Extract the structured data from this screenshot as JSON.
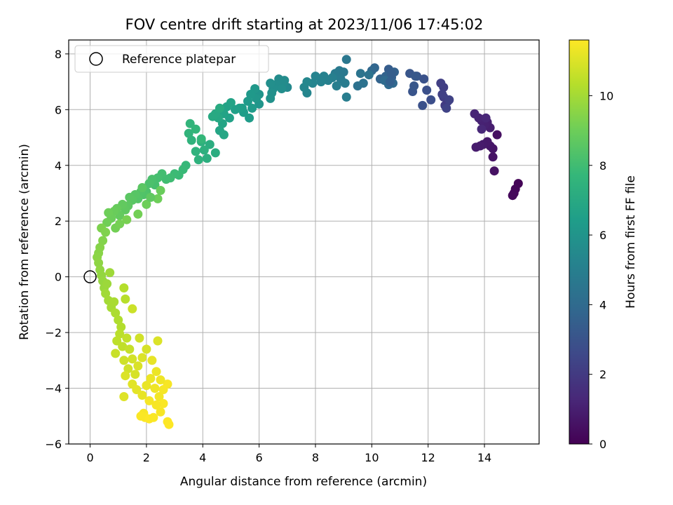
{
  "chart_data": {
    "type": "scatter",
    "title": "FOV centre drift starting at 2023/11/06 17:45:02",
    "xlabel": "Angular distance from reference (arcmin)",
    "ylabel": "Rotation from reference (arcmin)",
    "xlim": [
      -0.76,
      15.94
    ],
    "ylim": [
      -6,
      8.5
    ],
    "xticks": [
      0,
      2,
      4,
      6,
      8,
      10,
      12,
      14
    ],
    "yticks": [
      -6,
      -4,
      -2,
      0,
      2,
      4,
      6,
      8
    ],
    "grid": true,
    "legend": {
      "placement": "top-left",
      "entries": [
        "Reference platepar"
      ]
    },
    "reference_point": {
      "x": 0,
      "y": 0
    },
    "colorbar": {
      "label": "Hours from first FF file",
      "colormap": "viridis",
      "range": [
        0,
        11.6
      ],
      "ticks": [
        0,
        2,
        4,
        6,
        8,
        10
      ]
    },
    "colormap_stops": [
      "#440154",
      "#482878",
      "#3e4989",
      "#31688e",
      "#26828e",
      "#1f9e89",
      "#35b779",
      "#6ece58",
      "#b5de2b",
      "#fde725"
    ],
    "series": [
      {
        "points": [
          [
            15.2,
            3.35,
            0.1
          ],
          [
            15.1,
            3.15,
            0.15
          ],
          [
            15.05,
            3.0,
            0.2
          ],
          [
            15.0,
            2.92,
            0.25
          ],
          [
            14.45,
            5.1,
            0.5
          ],
          [
            14.35,
            3.8,
            0.55
          ],
          [
            14.3,
            4.3,
            0.6
          ],
          [
            14.3,
            4.6,
            0.65
          ],
          [
            14.2,
            4.7,
            0.7
          ],
          [
            14.1,
            4.85,
            0.75
          ],
          [
            13.95,
            4.75,
            0.8
          ],
          [
            13.85,
            4.7,
            0.85
          ],
          [
            13.7,
            4.65,
            0.9
          ],
          [
            14.2,
            5.35,
            0.95
          ],
          [
            14.1,
            5.55,
            1.0
          ],
          [
            14.0,
            5.45,
            1.05
          ],
          [
            13.9,
            5.6,
            1.1
          ],
          [
            13.8,
            5.7,
            1.15
          ],
          [
            13.65,
            5.85,
            1.2
          ],
          [
            14.05,
            5.7,
            1.25
          ],
          [
            13.9,
            5.3,
            1.3
          ],
          [
            12.7,
            6.3,
            2.0
          ],
          [
            12.6,
            6.15,
            2.05
          ],
          [
            12.55,
            6.45,
            2.1
          ],
          [
            12.55,
            6.8,
            2.15
          ],
          [
            12.45,
            6.95,
            2.2
          ],
          [
            12.5,
            6.55,
            2.25
          ],
          [
            12.75,
            6.35,
            2.3
          ],
          [
            12.65,
            6.05,
            2.35
          ],
          [
            12.1,
            6.35,
            2.8
          ],
          [
            11.95,
            6.7,
            2.85
          ],
          [
            11.8,
            6.15,
            2.9
          ],
          [
            11.85,
            7.1,
            2.95
          ],
          [
            11.6,
            7.2,
            3.0
          ],
          [
            11.45,
            6.65,
            3.05
          ],
          [
            11.35,
            7.3,
            3.1
          ],
          [
            11.5,
            6.85,
            3.15
          ],
          [
            11.55,
            7.2,
            3.2
          ],
          [
            10.6,
            7.45,
            3.4
          ],
          [
            10.7,
            7.15,
            3.5
          ],
          [
            10.8,
            7.35,
            3.6
          ],
          [
            10.5,
            7.2,
            3.65
          ],
          [
            10.3,
            7.1,
            3.7
          ],
          [
            10.1,
            7.5,
            3.8
          ],
          [
            10.0,
            7.4,
            3.85
          ],
          [
            10.75,
            6.95,
            3.9
          ],
          [
            10.6,
            6.9,
            3.95
          ],
          [
            10.45,
            7.05,
            4.0
          ],
          [
            10.7,
            7.3,
            3.45
          ],
          [
            10.65,
            7.0,
            3.55
          ],
          [
            9.5,
            6.85,
            4.3
          ],
          [
            9.7,
            6.95,
            4.35
          ],
          [
            9.9,
            7.25,
            4.4
          ],
          [
            9.6,
            7.3,
            4.45
          ],
          [
            9.1,
            7.8,
            4.6
          ],
          [
            9.0,
            7.35,
            4.65
          ],
          [
            8.85,
            7.4,
            4.7
          ],
          [
            8.7,
            7.3,
            4.75
          ],
          [
            8.9,
            7.1,
            4.8
          ],
          [
            9.05,
            6.95,
            4.85
          ],
          [
            9.1,
            6.45,
            4.9
          ],
          [
            8.75,
            6.85,
            4.95
          ],
          [
            8.6,
            7.15,
            5.0
          ],
          [
            8.45,
            7.05,
            5.05
          ],
          [
            8.3,
            7.2,
            5.1
          ],
          [
            8.2,
            7.0,
            5.15
          ],
          [
            8.0,
            7.2,
            5.2
          ],
          [
            7.9,
            6.95,
            5.25
          ],
          [
            7.7,
            6.6,
            5.3
          ],
          [
            7.6,
            6.8,
            5.35
          ],
          [
            7.7,
            7.0,
            5.4
          ],
          [
            7.0,
            6.8,
            5.5
          ],
          [
            6.85,
            6.95,
            5.55
          ],
          [
            6.7,
            7.1,
            5.6
          ],
          [
            6.6,
            6.9,
            5.65
          ],
          [
            6.5,
            6.75,
            5.7
          ],
          [
            6.4,
            6.95,
            5.75
          ],
          [
            6.45,
            6.6,
            5.8
          ],
          [
            6.4,
            6.4,
            5.85
          ],
          [
            6.9,
            7.05,
            5.6
          ],
          [
            6.8,
            6.75,
            5.7
          ],
          [
            6.0,
            6.55,
            6.0
          ],
          [
            6.0,
            6.2,
            6.05
          ],
          [
            5.9,
            6.4,
            6.1
          ],
          [
            5.85,
            6.75,
            6.15
          ],
          [
            5.7,
            6.55,
            6.2
          ],
          [
            5.6,
            6.3,
            6.25
          ],
          [
            5.75,
            6.05,
            6.3
          ],
          [
            5.65,
            5.7,
            6.35
          ],
          [
            5.45,
            5.9,
            6.4
          ],
          [
            5.4,
            6.05,
            6.45
          ],
          [
            5.3,
            6.05,
            6.5
          ],
          [
            5.15,
            6.0,
            6.55
          ],
          [
            4.95,
            5.7,
            6.6
          ],
          [
            4.85,
            6.1,
            6.65
          ],
          [
            4.75,
            5.85,
            6.7
          ],
          [
            4.7,
            5.5,
            6.75
          ],
          [
            4.6,
            5.25,
            6.8
          ],
          [
            4.75,
            5.1,
            6.85
          ],
          [
            4.55,
            5.7,
            6.9
          ],
          [
            4.45,
            5.85,
            6.95
          ],
          [
            4.35,
            5.75,
            7.0
          ],
          [
            4.6,
            6.05,
            7.05
          ],
          [
            5.0,
            6.25,
            6.7
          ],
          [
            4.45,
            4.45,
            7.15
          ],
          [
            4.25,
            4.75,
            7.2
          ],
          [
            4.15,
            4.25,
            7.25
          ],
          [
            4.05,
            4.55,
            7.3
          ],
          [
            3.95,
            4.85,
            7.35
          ],
          [
            3.85,
            4.2,
            7.4
          ],
          [
            3.75,
            4.5,
            7.45
          ],
          [
            3.6,
            4.9,
            7.5
          ],
          [
            3.5,
            5.15,
            7.55
          ],
          [
            3.55,
            5.5,
            7.6
          ],
          [
            3.75,
            5.3,
            7.65
          ],
          [
            3.95,
            4.95,
            7.7
          ],
          [
            3.4,
            4.0,
            7.75
          ],
          [
            3.3,
            3.85,
            7.8
          ],
          [
            3.15,
            3.65,
            7.85
          ],
          [
            3.0,
            3.7,
            7.9
          ],
          [
            2.85,
            3.55,
            7.95
          ],
          [
            2.7,
            3.5,
            8.0
          ],
          [
            2.55,
            3.7,
            8.05
          ],
          [
            2.4,
            3.55,
            8.1
          ],
          [
            2.3,
            3.3,
            8.15
          ],
          [
            2.2,
            3.5,
            8.2
          ],
          [
            2.1,
            3.35,
            8.25
          ],
          [
            2.0,
            3.05,
            8.3
          ],
          [
            1.9,
            2.95,
            8.35
          ],
          [
            1.8,
            3.05,
            8.4
          ],
          [
            1.7,
            2.8,
            8.45
          ],
          [
            1.6,
            2.95,
            8.5
          ],
          [
            1.5,
            2.75,
            8.55
          ],
          [
            1.4,
            2.85,
            8.6
          ],
          [
            1.35,
            2.55,
            8.65
          ],
          [
            1.25,
            2.4,
            8.7
          ],
          [
            1.15,
            2.6,
            8.75
          ],
          [
            1.05,
            2.2,
            8.8
          ],
          [
            0.95,
            2.45,
            8.85
          ],
          [
            0.85,
            2.35,
            8.9
          ],
          [
            0.75,
            2.1,
            8.95
          ],
          [
            0.65,
            2.3,
            9.0
          ],
          [
            0.6,
            1.95,
            9.05
          ],
          [
            0.9,
            1.75,
            9.1
          ],
          [
            1.05,
            1.9,
            9.15
          ],
          [
            1.3,
            2.05,
            9.2
          ],
          [
            1.7,
            2.25,
            9.1
          ],
          [
            2.0,
            2.6,
            9.0
          ],
          [
            2.4,
            2.8,
            9.0
          ],
          [
            2.5,
            3.1,
            8.9
          ],
          [
            1.85,
            3.2,
            8.6
          ],
          [
            2.15,
            2.85,
            8.7
          ],
          [
            0.4,
            1.75,
            9.3
          ],
          [
            0.55,
            1.6,
            9.35
          ],
          [
            0.45,
            1.3,
            9.4
          ],
          [
            0.35,
            1.05,
            9.45
          ],
          [
            0.3,
            0.85,
            9.5
          ],
          [
            0.25,
            0.7,
            9.55
          ],
          [
            0.3,
            0.5,
            9.6
          ],
          [
            0.35,
            0.25,
            9.65
          ],
          [
            0.4,
            0.05,
            9.7
          ],
          [
            0.45,
            -0.15,
            9.75
          ],
          [
            0.5,
            -0.4,
            9.8
          ],
          [
            0.6,
            -0.25,
            9.85
          ],
          [
            0.7,
            0.15,
            9.9
          ],
          [
            0.55,
            -0.6,
            9.95
          ],
          [
            0.65,
            -0.85,
            10.0
          ],
          [
            0.75,
            -1.1,
            10.05
          ],
          [
            0.85,
            -0.9,
            10.1
          ],
          [
            0.9,
            -1.3,
            10.15
          ],
          [
            1.0,
            -1.55,
            10.2
          ],
          [
            1.1,
            -1.8,
            10.25
          ],
          [
            1.2,
            -0.4,
            10.3
          ],
          [
            1.25,
            -0.8,
            10.35
          ],
          [
            1.05,
            -2.05,
            10.4
          ],
          [
            0.95,
            -2.3,
            10.45
          ],
          [
            1.15,
            -2.5,
            10.5
          ],
          [
            1.3,
            -2.2,
            10.55
          ],
          [
            1.4,
            -2.6,
            10.6
          ],
          [
            0.9,
            -2.75,
            10.65
          ],
          [
            1.5,
            -1.15,
            10.7
          ],
          [
            1.2,
            -3.0,
            10.75
          ],
          [
            1.35,
            -3.3,
            10.8
          ],
          [
            1.5,
            -2.95,
            10.85
          ],
          [
            1.6,
            -3.5,
            10.9
          ],
          [
            1.7,
            -3.2,
            10.95
          ],
          [
            1.85,
            -2.9,
            11.0
          ],
          [
            1.75,
            -2.2,
            10.8
          ],
          [
            2.0,
            -2.6,
            10.9
          ],
          [
            2.4,
            -2.3,
            11.0
          ],
          [
            1.25,
            -3.55,
            11.0
          ],
          [
            1.2,
            -4.3,
            11.05
          ],
          [
            1.5,
            -3.85,
            11.1
          ],
          [
            1.65,
            -4.05,
            11.15
          ],
          [
            1.85,
            -4.25,
            11.2
          ],
          [
            2.0,
            -3.9,
            11.25
          ],
          [
            2.15,
            -3.65,
            11.3
          ],
          [
            2.3,
            -4.0,
            11.35
          ],
          [
            2.45,
            -4.3,
            11.4
          ],
          [
            2.6,
            -4.05,
            11.45
          ],
          [
            2.75,
            -3.85,
            11.5
          ],
          [
            2.6,
            -4.55,
            11.55
          ],
          [
            2.35,
            -4.6,
            11.5
          ],
          [
            2.1,
            -4.45,
            11.45
          ],
          [
            1.9,
            -4.9,
            11.5
          ],
          [
            1.95,
            -5.05,
            11.55
          ],
          [
            2.1,
            -5.1,
            11.6
          ],
          [
            2.25,
            -5.05,
            11.55
          ],
          [
            2.5,
            -4.85,
            11.5
          ],
          [
            2.75,
            -5.2,
            11.6
          ],
          [
            2.8,
            -5.3,
            11.6
          ],
          [
            1.8,
            -5.0,
            11.55
          ],
          [
            2.2,
            -3.0,
            11.2
          ],
          [
            2.35,
            -3.4,
            11.3
          ],
          [
            2.5,
            -3.7,
            11.35
          ]
        ]
      }
    ]
  }
}
